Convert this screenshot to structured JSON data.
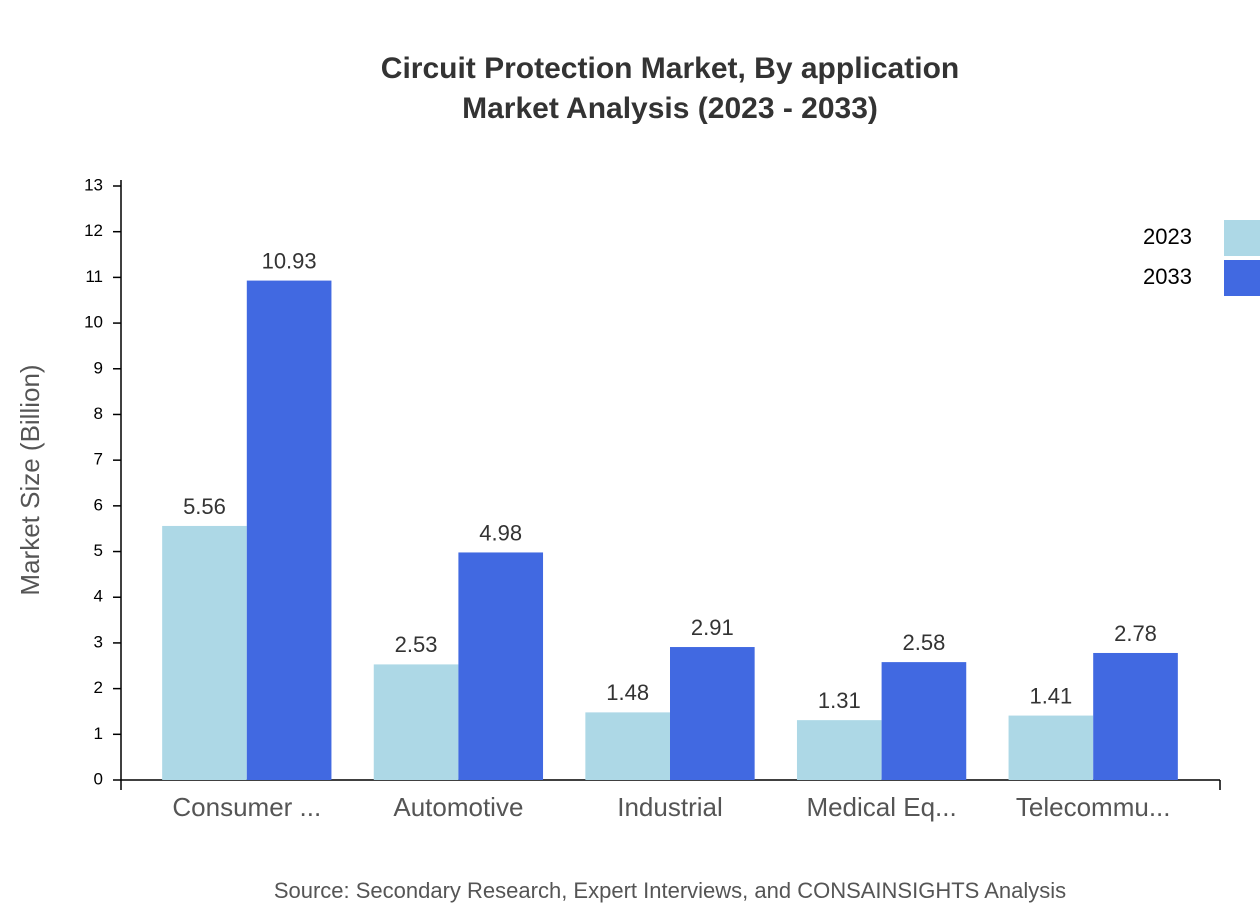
{
  "chart_data": {
    "type": "bar",
    "title": "Circuit Protection Market, By application",
    "subtitle": "Market Analysis (2023 - 2033)",
    "y_label": "Market Size (Billion)",
    "source": "Source: Secondary Research, Expert Interviews, and CONSAINSIGHTS Analysis",
    "categories": [
      "Consumer ...",
      "Automotive",
      "Industrial",
      "Medical Eq...",
      "Telecommu..."
    ],
    "series": [
      {
        "name": "2023",
        "color": "#add8e6",
        "values": [
          5.56,
          2.53,
          1.48,
          1.31,
          1.41
        ]
      },
      {
        "name": "2033",
        "color": "#4169e1",
        "values": [
          10.93,
          4.98,
          2.91,
          2.58,
          2.78
        ]
      }
    ],
    "ylim": [
      0,
      13
    ],
    "yticks": [
      0,
      1,
      2,
      3,
      4,
      5,
      6,
      7,
      8,
      9,
      10,
      11,
      12,
      13
    ],
    "legend": "top-right"
  }
}
